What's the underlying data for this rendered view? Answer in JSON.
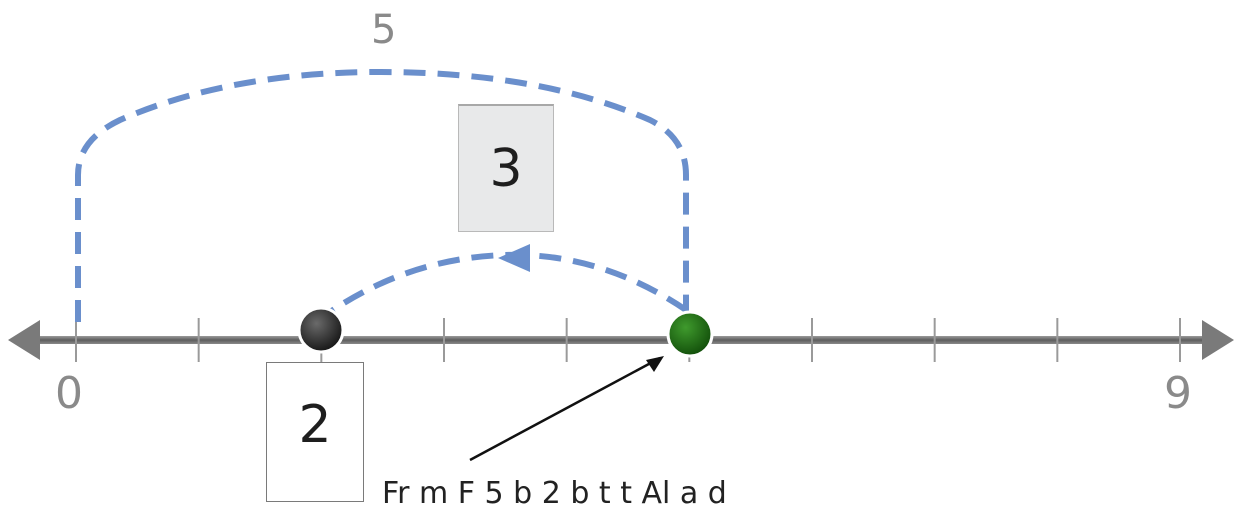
{
  "number_line": {
    "start_label": "0",
    "end_label": "9",
    "min": 0,
    "max": 9,
    "ticks": [
      0,
      1,
      2,
      3,
      4,
      5,
      6,
      7,
      8,
      9
    ]
  },
  "jumps": {
    "whole_label": "5",
    "part_label": "3",
    "start_value": 2,
    "end_value": 5
  },
  "points": {
    "start": {
      "value": 2,
      "label": "2",
      "color": "#222222"
    },
    "end": {
      "value": 5,
      "color": "#1f6b14"
    }
  },
  "caption": "Fr       m  F  5  b    2 b   t      t    Al   a  d",
  "colors": {
    "jump_line": "#6a8fcc",
    "axis": "#6e6e6e"
  }
}
